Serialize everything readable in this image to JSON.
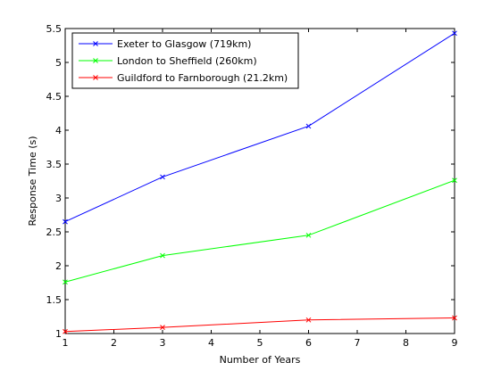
{
  "chart_data": {
    "type": "line",
    "title": "",
    "xlabel": "Number of Years",
    "ylabel": "Response Time (s)",
    "xlim": [
      1,
      9
    ],
    "ylim": [
      1,
      5.5
    ],
    "xticks": [
      1,
      2,
      3,
      4,
      5,
      6,
      7,
      8,
      9
    ],
    "xtick_labels": [
      "1",
      "2",
      "3",
      "4",
      "5",
      "6",
      "7",
      "8",
      "9"
    ],
    "yticks": [
      1,
      1.5,
      2,
      2.5,
      3,
      3.5,
      4,
      4.5,
      5,
      5.5
    ],
    "ytick_labels": [
      "1",
      "1.5",
      "2",
      "2.5",
      "3",
      "3.5",
      "4",
      "4.5",
      "5",
      "5.5"
    ],
    "grid": false,
    "legend_position": "top-left",
    "marker": "x",
    "series": [
      {
        "name": "Exeter to Glasgow (719km)",
        "color": "#0000ff",
        "x": [
          1,
          3,
          6,
          9
        ],
        "y": [
          2.65,
          3.31,
          4.06,
          5.43
        ]
      },
      {
        "name": "London to Sheffield (260km)",
        "color": "#00ff00",
        "x": [
          1,
          3,
          6,
          9
        ],
        "y": [
          1.76,
          2.15,
          2.45,
          3.26
        ]
      },
      {
        "name": "Guildford to Farnborough (21.2km)",
        "color": "#ff0000",
        "x": [
          1,
          3,
          6,
          9
        ],
        "y": [
          1.03,
          1.09,
          1.2,
          1.23
        ]
      }
    ]
  }
}
